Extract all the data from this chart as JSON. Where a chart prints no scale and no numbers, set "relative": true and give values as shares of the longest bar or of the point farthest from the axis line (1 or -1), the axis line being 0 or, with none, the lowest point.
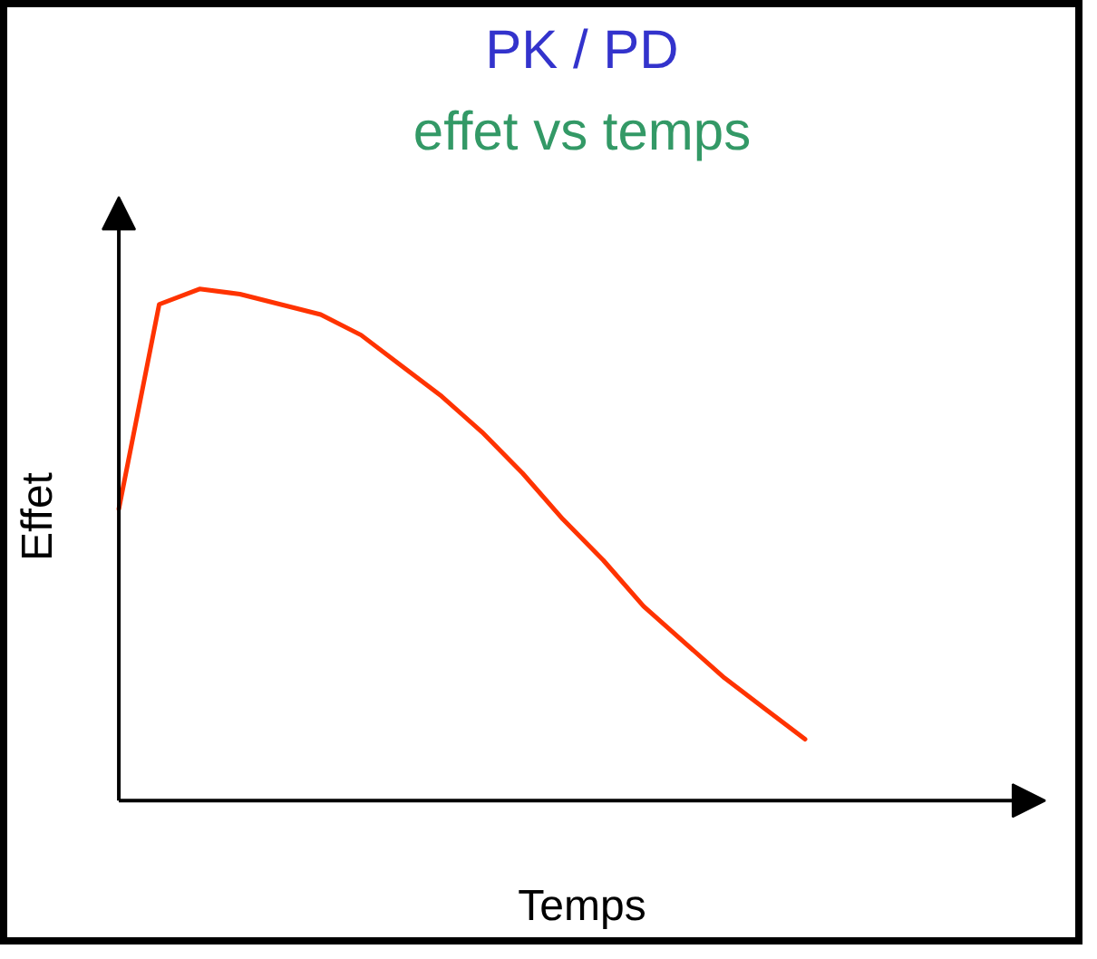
{
  "chart_data": {
    "type": "line",
    "title": "PK / PD",
    "subtitle": "effet vs temps",
    "xlabel": "Temps",
    "ylabel": "Effet",
    "relative": true,
    "categories": [
      null,
      null,
      null,
      null,
      null,
      null,
      null,
      null,
      null,
      null,
      null,
      null,
      null,
      null,
      null,
      null,
      null,
      null
    ],
    "series": [
      {
        "color": "#ff3300",
        "values": [
          0.57,
          0.97,
          1.0,
          0.99,
          0.97,
          0.95,
          0.91,
          0.85,
          0.79,
          0.72,
          0.64,
          0.55,
          0.47,
          0.38,
          0.31,
          0.24,
          0.18,
          0.12
        ]
      }
    ]
  }
}
